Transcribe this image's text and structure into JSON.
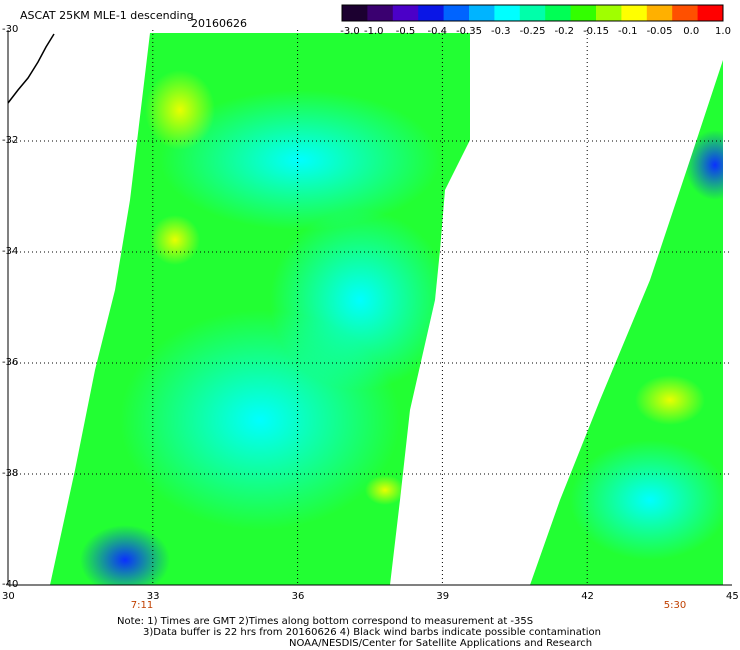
{
  "header": {
    "title": "ASCAT 25KM MLE-1 descending",
    "date": "20160626"
  },
  "colorbar": {
    "tick_labels": [
      "-3.0",
      "-1.0",
      "-0.5",
      "-0.4",
      "-0.35",
      "-0.3",
      "-0.25",
      "-0.2",
      "-0.15",
      "-0.1",
      "-0.05",
      "0.0",
      "1.0"
    ],
    "colors": [
      "#1c0030",
      "#3a0070",
      "#4b00c8",
      "#0a16e6",
      "#0064ff",
      "#00b4ff",
      "#00ffff",
      "#00ffaa",
      "#00ff55",
      "#33ff00",
      "#a0ff00",
      "#ffff00",
      "#ffb000",
      "#ff5000",
      "#ff0000"
    ]
  },
  "axes": {
    "x_ticks": [
      "30",
      "33",
      "36",
      "39",
      "42",
      "45"
    ],
    "y_ticks": [
      "-30",
      "-32",
      "-34",
      "-36",
      "-38",
      "-40"
    ],
    "lon_range": [
      30,
      45
    ],
    "lat_range": [
      -40,
      -30
    ]
  },
  "times": {
    "left_swath": "7:11",
    "right_swath": "5:30"
  },
  "notes": {
    "line1": "Note: 1) Times are GMT 2)Times along bottom correspond to measurement at -35S",
    "line2": "3)Data buffer is 22 hrs from 20160626 4) Black wind barbs indicate possible contamination",
    "line3": "NOAA/NESDIS/Center for Satellite Applications and Research"
  },
  "colors": {
    "grid": "#000000",
    "time_label": "#c04000",
    "background": "#ffffff"
  }
}
